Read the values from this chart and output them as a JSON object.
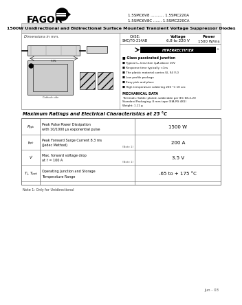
{
  "bg_color": "#ffffff",
  "title_bar_color": "#e0e0e0",
  "title_text": "1500W Unidirectional and Bidirectional Surface Mounted Transient Voltage Suppressor Diodes",
  "part_numbers_line1": "1.5SMC6V8 ........... 1.5SMC220A",
  "part_numbers_line2": "1.5SMC6V8C ....... 1.5SMC220CA",
  "fagor_text": "FAGOR",
  "case_label": "CASE:",
  "case_val": "SMC/TO-214AB",
  "voltage_label": "Voltage",
  "voltage_val": "6.8 to 220 V",
  "power_label": "Power",
  "power_val": "1500 W/ms",
  "hyperrectifier_text": "HYPERRECTIFIER",
  "features_title": "Glass passivated junction",
  "features": [
    "Typical I₂₂ less than 1μA above 10V",
    "Response time typically <1ns",
    "The plastic material carries UL 94 V-0",
    "Low profile package",
    "Easy pick and place",
    "High temperature soldering 260 °C 10 sec"
  ],
  "mech_title": "MECHANICAL DATA",
  "mech_lines": [
    "Terminals: Solder plated, solderable per IEC 68-2-20",
    "Standard Packaging: 8 mm tape (EIA-RS 481)",
    "Weight: 1.11 g"
  ],
  "table_title": "Maximum Ratings and Electrical Characteristics at 25 °C",
  "table_rows": [
    {
      "sym": "Pₚₚₖ",
      "desc1": "Peak Pulse Power Dissipation",
      "desc2": "with 10/1000 μs exponential pulse",
      "note": "",
      "value": "1500 W"
    },
    {
      "sym": "Iₚₚₖ",
      "desc1": "Peak Forward Surge Current 8.3 ms",
      "desc2": "(Jedec Method)",
      "note": "(Note 1)",
      "value": "200 A"
    },
    {
      "sym": "Vⁱ",
      "desc1": "Max. forward voltage drop",
      "desc2": "at Iⁱ = 100 A",
      "note": "(Note 1)",
      "value": "3.5 V"
    },
    {
      "sym": "Tⱼ, Tₚₚₖ",
      "desc1": "Operating Junction and Storage",
      "desc2": "Temperature Range",
      "note": "",
      "value": "-65 to + 175 °C"
    }
  ],
  "note_text": "Note 1: Only for Unidirectional",
  "date_text": "Jun - 03",
  "dim_title": "Dimensions in mm."
}
